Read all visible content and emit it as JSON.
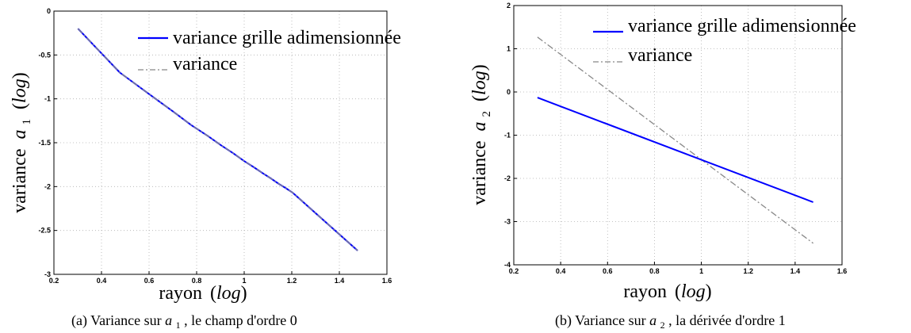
{
  "chart_data": [
    {
      "type": "line",
      "x_ticks": [
        "0.2",
        "0.4",
        "0.6",
        "0.8",
        "1",
        "1.2",
        "1.4",
        "1.6"
      ],
      "y_ticks": [
        "0",
        "-0.5",
        "-1",
        "-1.5",
        "-2",
        "-2.5",
        "-3"
      ],
      "xlim": [
        0.2,
        1.6
      ],
      "ylim": [
        -3,
        0
      ],
      "grid": true,
      "legend_position": "top-right",
      "series": [
        {
          "name": "variance grille adimensionnée",
          "color": "#0000ff",
          "style": "solid",
          "x": [
            0.301,
            0.477,
            0.602,
            0.699,
            0.778,
            0.845,
            0.903,
            0.954,
            1.0,
            1.041,
            1.079,
            1.114,
            1.146,
            1.176,
            1.204,
            1.477
          ],
          "y": [
            -0.2,
            -0.7,
            -0.95,
            -1.14,
            -1.3,
            -1.42,
            -1.53,
            -1.62,
            -1.71,
            -1.78,
            -1.85,
            -1.91,
            -1.97,
            -2.02,
            -2.07,
            -2.73
          ]
        },
        {
          "name": "variance",
          "color": "#888888",
          "style": "dashdot",
          "x": [
            0.301,
            0.477,
            0.602,
            0.699,
            0.778,
            0.845,
            0.903,
            0.954,
            1.0,
            1.041,
            1.079,
            1.114,
            1.146,
            1.176,
            1.204,
            1.477
          ],
          "y": [
            -0.2,
            -0.7,
            -0.95,
            -1.14,
            -1.3,
            -1.42,
            -1.53,
            -1.62,
            -1.71,
            -1.78,
            -1.85,
            -1.91,
            -1.97,
            -2.02,
            -2.07,
            -2.73
          ]
        }
      ]
    },
    {
      "type": "line",
      "x_ticks": [
        "0.2",
        "0.4",
        "0.6",
        "0.8",
        "1",
        "1.2",
        "1.4",
        "1.6"
      ],
      "y_ticks": [
        "2",
        "1",
        "0",
        "-1",
        "-2",
        "-3",
        "-4"
      ],
      "xlim": [
        0.2,
        1.6
      ],
      "ylim": [
        -4,
        2
      ],
      "grid": true,
      "legend_position": "top-right",
      "series": [
        {
          "name": "variance grille adimensionnée",
          "color": "#0000ff",
          "style": "solid",
          "x": [
            0.301,
            1.477
          ],
          "y": [
            -0.13,
            -2.55
          ]
        },
        {
          "name": "variance",
          "color": "#888888",
          "style": "dashdot",
          "x": [
            0.301,
            1.477
          ],
          "y": [
            1.27,
            -3.5
          ]
        }
      ]
    }
  ],
  "captions": [
    "(a) Variance sur a1, le champ d'ordre 0",
    "(b) Variance sur a2, la dérivée d'ordre 1"
  ],
  "labels": {
    "xlabel_word": "rayon",
    "ylabel_word": "variance",
    "log_word": "log",
    "var_letter": "a",
    "sub_1": "1",
    "sub_2": "2",
    "caption_a_pre": "(a)  Variance sur ",
    "caption_a_post": ", le champ d'ordre 0",
    "caption_b_pre": "(b)  Variance sur ",
    "caption_b_post": ", la dérivée d'ordre 1"
  }
}
